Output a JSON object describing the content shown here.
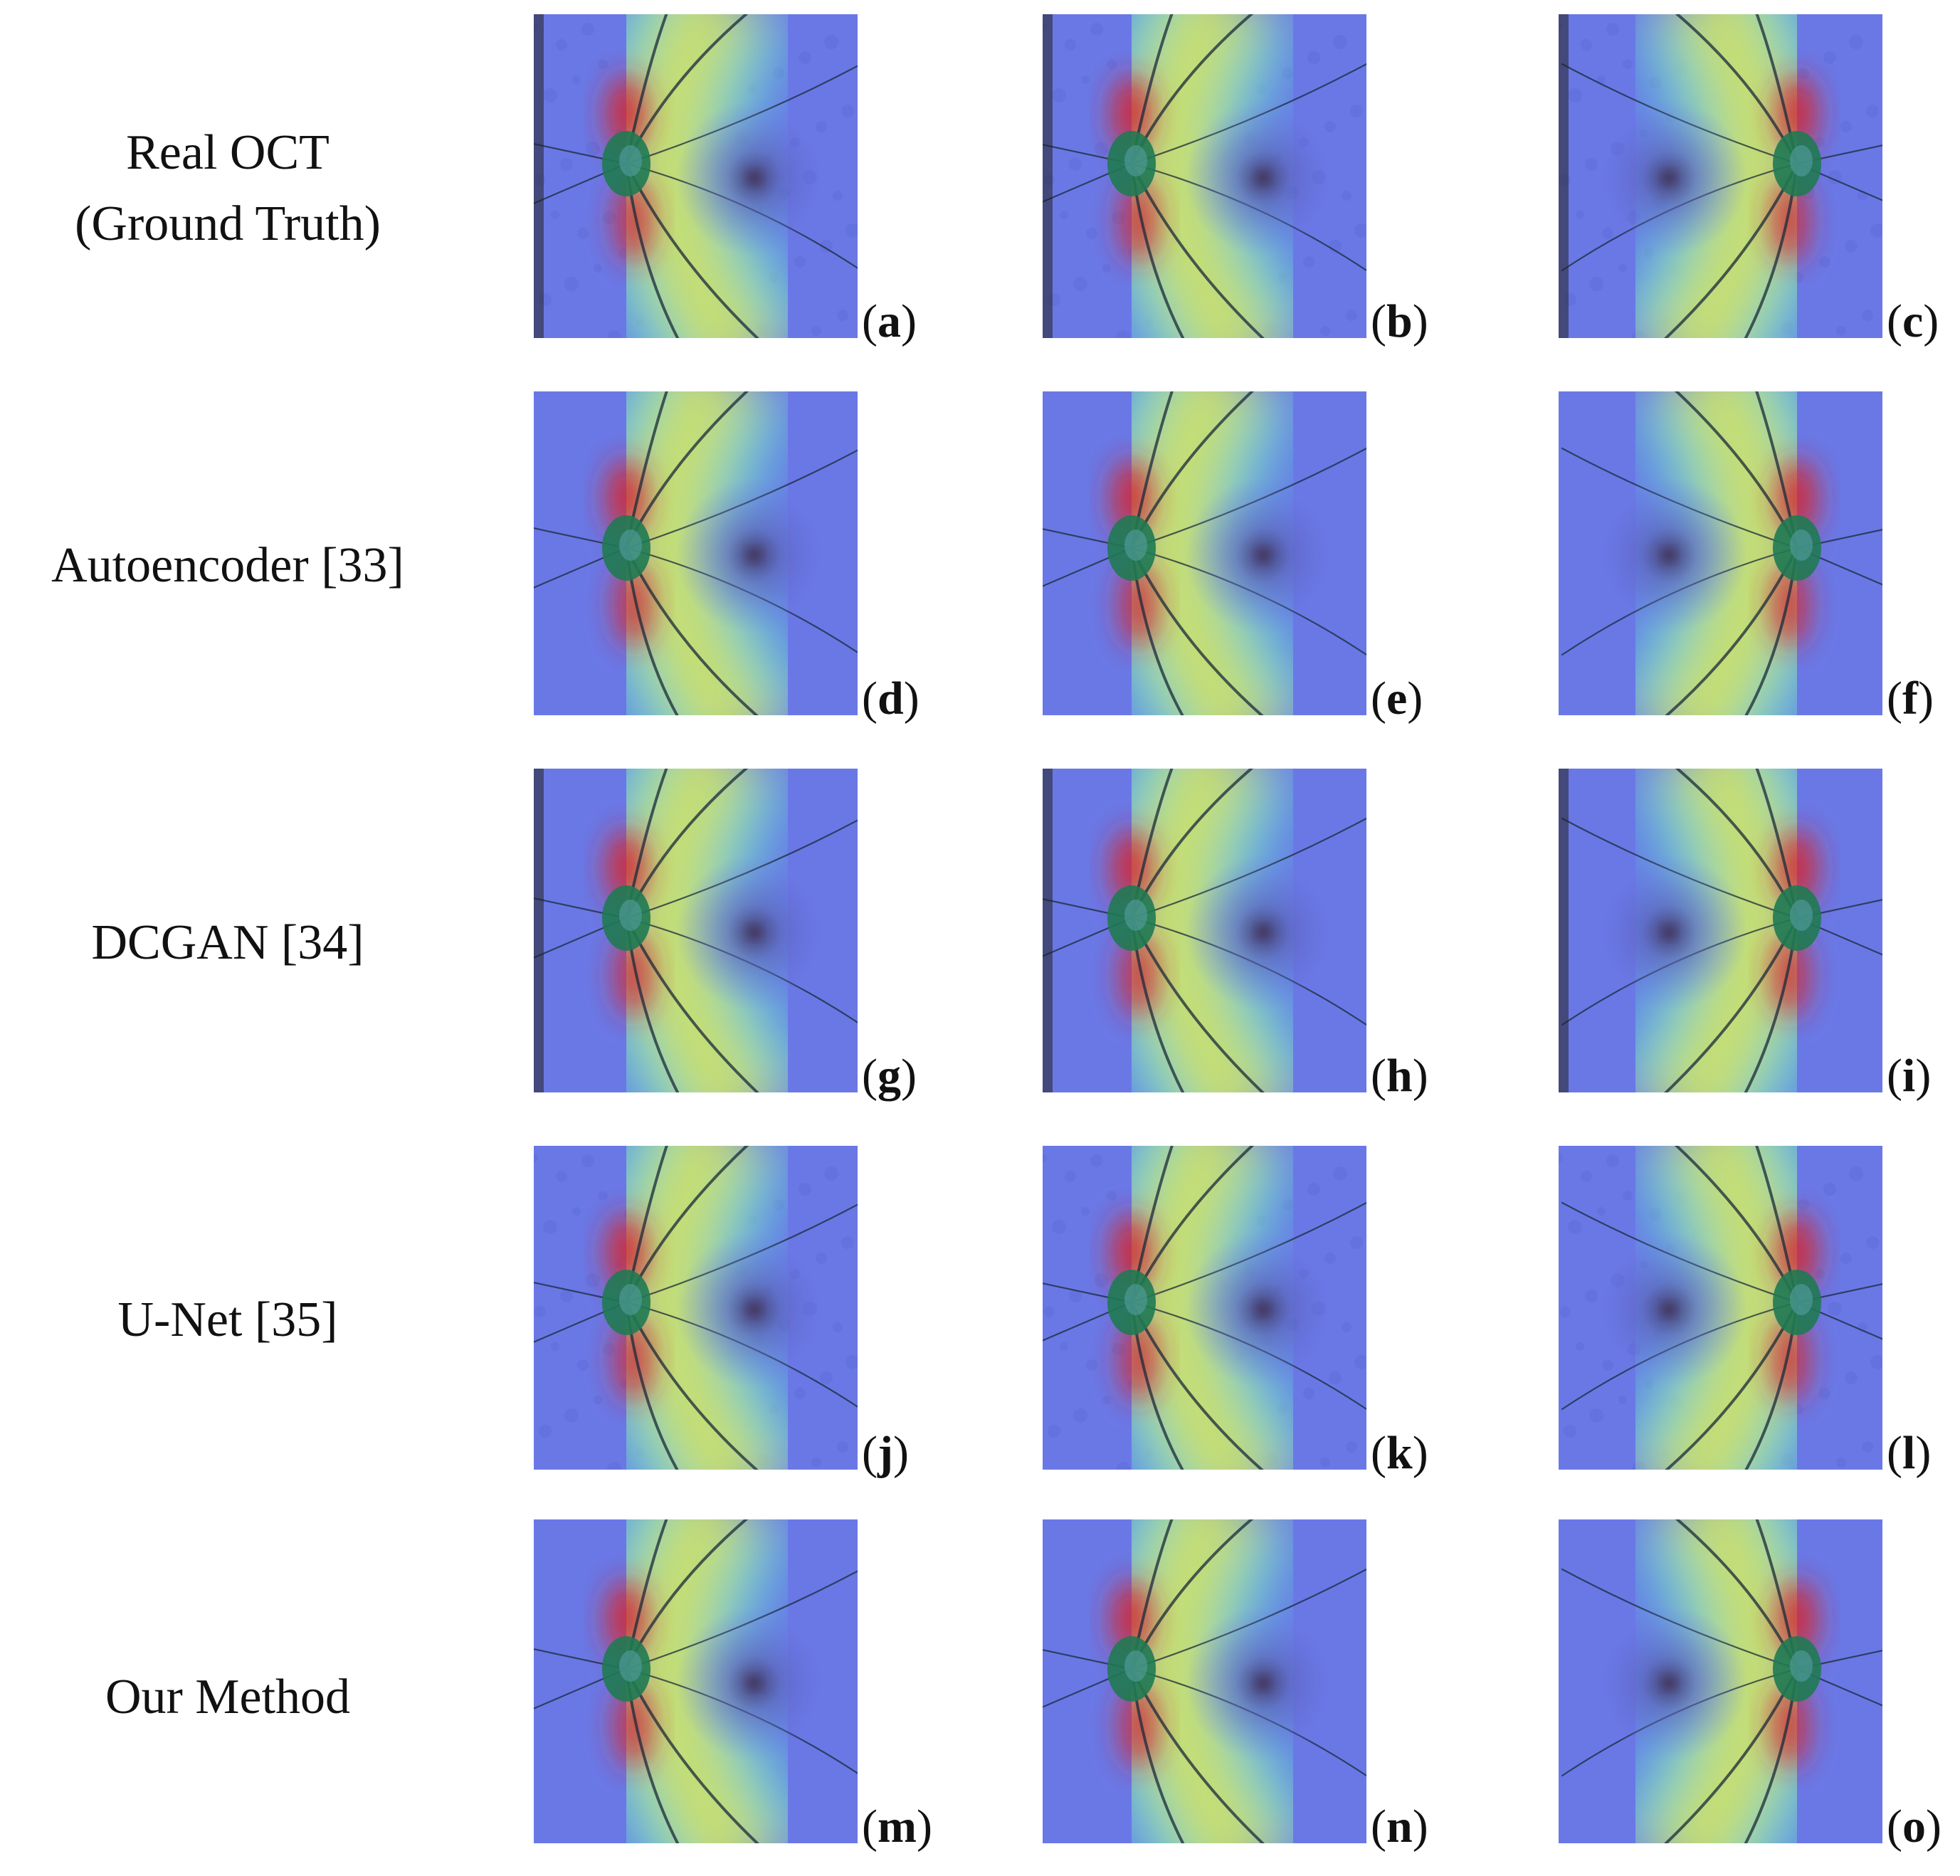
{
  "rows": [
    {
      "label_line1": "Real OCT",
      "label_line2": "(Ground Truth)"
    },
    {
      "label_line1": "Autoencoder [33]",
      "label_line2": ""
    },
    {
      "label_line1": "DCGAN [34]",
      "label_line2": ""
    },
    {
      "label_line1": "U-Net [35]",
      "label_line2": ""
    },
    {
      "label_line1": "Our Method",
      "label_line2": ""
    }
  ],
  "panels": [
    "a",
    "b",
    "c",
    "d",
    "e",
    "f",
    "g",
    "h",
    "i",
    "j",
    "k",
    "l",
    "m",
    "n",
    "o"
  ],
  "palette": {
    "background": "#6a78e6",
    "hot_red": "#d8242a",
    "warm_yellow": "#e8e24a",
    "cool_cyan": "#52e0d4",
    "disc_green": "#1f7a52",
    "vessel": "#1b2a3a",
    "fovea": "#4a3d6a"
  }
}
